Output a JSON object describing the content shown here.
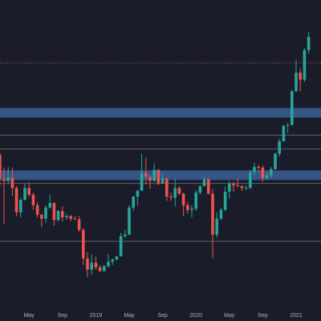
{
  "chart_data": {
    "type": "candlestick",
    "categories": [
      null,
      null,
      null,
      null,
      null,
      null,
      null,
      null,
      "May",
      null,
      null,
      null,
      null,
      null,
      null,
      null,
      "Sep",
      null,
      null,
      null,
      null,
      null,
      null,
      null,
      "2019",
      null,
      null,
      null,
      null,
      null,
      null,
      null,
      "May",
      null,
      null,
      null,
      null,
      null,
      null,
      null,
      "Sep",
      null,
      null,
      null,
      null,
      null,
      null,
      null,
      "2020",
      null,
      null,
      null,
      null,
      null,
      null,
      null,
      "May",
      null,
      null,
      null,
      null,
      null,
      null,
      null,
      "Sep",
      null,
      null,
      null,
      null,
      null,
      null,
      null,
      "2021",
      null,
      null,
      null
    ],
    "open": [
      13800,
      13600,
      10200,
      10000,
      10400,
      9200,
      6900,
      8000,
      9200,
      8500,
      7500,
      6700,
      6400,
      7300,
      7700,
      6300,
      7000,
      6500,
      6600,
      6400,
      6350,
      5600,
      4000,
      3500,
      3800,
      3600,
      3450,
      3650,
      3850,
      3950,
      4100,
      5200,
      5300,
      7300,
      8300,
      8900,
      11000,
      10500,
      10000,
      11400,
      9700,
      10300,
      8300,
      8200,
      9200,
      8600,
      7500,
      7100,
      7200,
      8700,
      9400,
      10200,
      8600,
      5300,
      6400,
      7100,
      8800,
      9700,
      9500,
      9400,
      9200,
      9200,
      11100,
      11800,
      11700,
      10300,
      10700,
      11500,
      13800,
      16000,
      19200,
      19400,
      28900,
      36000,
      33100,
      47000
    ],
    "high": [
      17100,
      14000,
      11700,
      11800,
      11700,
      9400,
      8200,
      9700,
      9900,
      8700,
      7800,
      6800,
      7500,
      8500,
      7800,
      7100,
      7400,
      6800,
      6700,
      6600,
      6600,
      5700,
      4300,
      4200,
      4100,
      3700,
      3700,
      4200,
      4000,
      4100,
      5400,
      5600,
      7500,
      8400,
      9000,
      13800,
      13200,
      10800,
      12300,
      11500,
      10900,
      10400,
      8700,
      10300,
      9400,
      8700,
      7800,
      7500,
      9000,
      9500,
      10500,
      10300,
      9100,
      6900,
      7300,
      9400,
      10000,
      9900,
      10300,
      9500,
      9500,
      11400,
      12400,
      12100,
      12000,
      11100,
      11800,
      14000,
      16500,
      19400,
      19900,
      29300,
      41900,
      37800,
      48000,
      58300
    ],
    "low": [
      12700,
      9400,
      6000,
      9700,
      8400,
      6600,
      6500,
      7900,
      8300,
      7100,
      6500,
      5800,
      6100,
      7200,
      5900,
      6200,
      6200,
      6300,
      6200,
      6300,
      5500,
      3700,
      3200,
      3300,
      3500,
      3400,
      3400,
      3600,
      3700,
      3900,
      4100,
      5100,
      5300,
      7000,
      7500,
      8900,
      9600,
      9100,
      9900,
      9500,
      9700,
      7900,
      7900,
      7400,
      8500,
      6600,
      6800,
      6500,
      7000,
      8500,
      9400,
      8500,
      4000,
      5100,
      6300,
      7000,
      8100,
      8800,
      9300,
      8900,
      9000,
      9100,
      10600,
      11100,
      9900,
      10200,
      10400,
      11400,
      13300,
      15900,
      17600,
      19300,
      28700,
      28800,
      32300,
      45000
    ],
    "close": [
      13600,
      10200,
      10000,
      10400,
      9200,
      6900,
      8000,
      9200,
      8500,
      7500,
      6700,
      6400,
      7300,
      7700,
      6300,
      7000,
      6500,
      6600,
      6400,
      6350,
      5600,
      4000,
      3500,
      3800,
      3600,
      3450,
      3650,
      3850,
      3950,
      4100,
      5200,
      5300,
      7300,
      8300,
      8900,
      11000,
      10500,
      10000,
      11400,
      9700,
      10300,
      8300,
      8200,
      9200,
      8600,
      7500,
      7100,
      7200,
      8700,
      9400,
      10200,
      8600,
      5300,
      6400,
      7100,
      8800,
      9700,
      9500,
      9400,
      9200,
      9200,
      11100,
      11800,
      11700,
      10300,
      10700,
      11500,
      13800,
      16000,
      19200,
      19400,
      28900,
      36000,
      33100,
      47000,
      55000
    ],
    "up_color": "#26a69a",
    "down_color": "#ef5350",
    "ylim": [
      2200,
      85000
    ],
    "log_scale": true,
    "levels": [
      {
        "value": 40400,
        "style": "dotted",
        "color": "#b8603c"
      },
      {
        "value": 22400,
        "style": "band",
        "color": "#3a5f95"
      },
      {
        "value": 17200,
        "style": "solid",
        "color": "#5d606b"
      },
      {
        "value": 14600,
        "style": "solid",
        "color": "#5d606b"
      },
      {
        "value": 10700,
        "style": "band",
        "color": "#3a5f95"
      },
      {
        "value": 9700,
        "style": "solid",
        "color": "#5d606b"
      },
      {
        "value": 4900,
        "style": "solid",
        "color": "#5d606b"
      }
    ]
  }
}
